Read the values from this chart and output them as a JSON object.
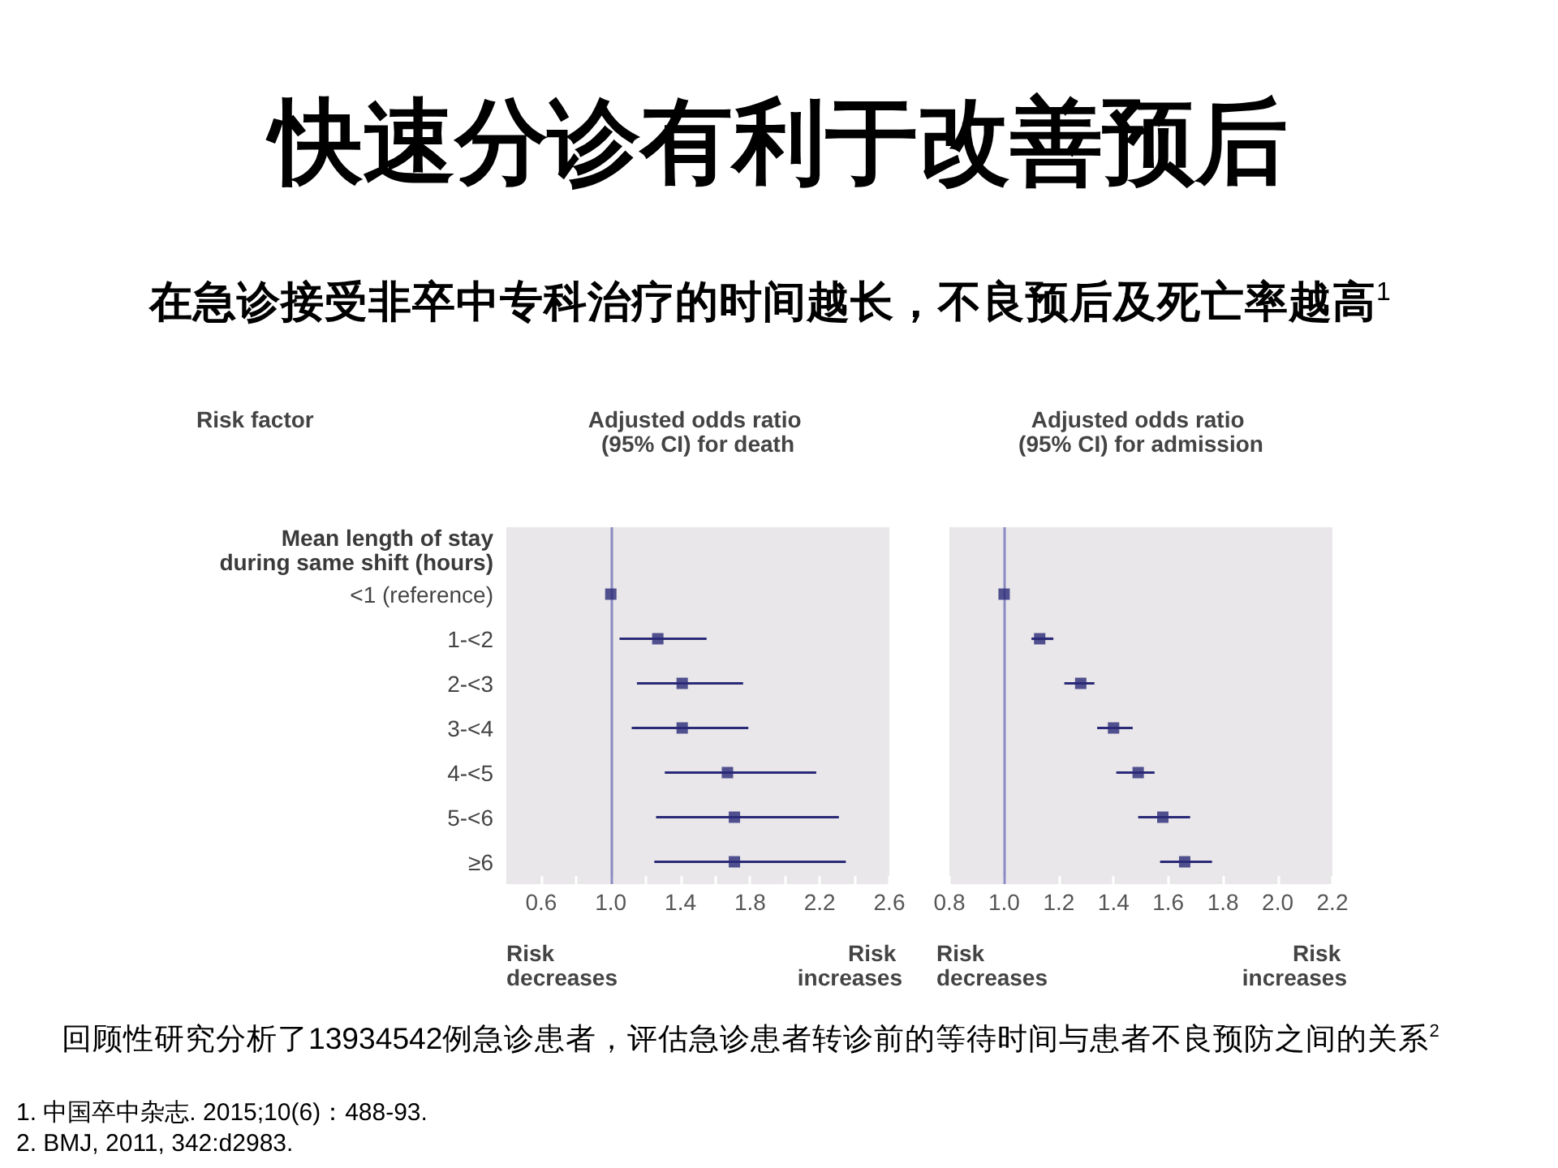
{
  "chart_data": [
    {
      "type": "scatter",
      "title": "快速分诊有利于改善预后",
      "subtitle": "在急诊接受非卒中专科治疗的时间越长，不良预后及死亡率越高$^{1}$",
      "xlabel": "Adjusted odds ratio (95% CI) for death",
      "ylabel": "Risk factor",
      "orientation": "horizontal",
      "marker": "square",
      "color": "#2b2a78",
      "categories": [
        "Mean length of stay during same shift (hours)",
        "<1 (reference)",
        "1-<2",
        "2-<3",
        "3-<4",
        "4-<5",
        "5-<6",
        "≥6"
      ],
      "values": [
        null,
        1,
        1.27,
        1.41,
        1.41,
        1.67,
        1.71,
        1.71
      ],
      "errors": [
        null,
        null,
        [
          1.05,
          1.55
        ],
        [
          1.15,
          1.76
        ],
        [
          1.12,
          1.79
        ],
        [
          1.31,
          2.18
        ],
        [
          1.26,
          2.31
        ],
        [
          1.25,
          2.35
        ]
      ],
      "xlim": [
        0.4,
        2.6
      ],
      "xticks": [
        0.6,
        {
          "value": 0.8,
          "label": null
        },
        {
          "value": 1,
          "label": "1.0"
        },
        {
          "value": 1.2,
          "label": null
        },
        1.4,
        {
          "value": 1.6,
          "label": null
        },
        1.8,
        {
          "value": 2,
          "label": null
        },
        2.2,
        {
          "value": 2.4,
          "label": null
        },
        2.6
      ],
      "ref_lines": [
        {
          "axis": "x",
          "value": 1,
          "color": "#8b8ac2"
        }
      ],
      "annotations": [
        "Risk decreases",
        "Risk increases",
        "回顾性研究分析了13934542例急诊患者，评估急诊患者转诊前的等待时间与患者不良预防之间的关系$^{2}$",
        "1. 中国卒中杂志. 2015;10(6)：488-93.",
        "2. BMJ, 2011, 342:d2983."
      ]
    },
    {
      "type": "scatter",
      "xlabel": "Adjusted odds ratio (95% CI) for admission",
      "orientation": "horizontal",
      "marker": "square",
      "color": "#2b2a78",
      "tick_labels": "x",
      "categories": [
        null,
        null,
        null,
        null,
        null,
        null,
        null,
        null
      ],
      "values": [
        null,
        1,
        1.13,
        1.28,
        1.4,
        1.49,
        1.58,
        1.66
      ],
      "errors": [
        null,
        null,
        [
          1.1,
          1.18
        ],
        [
          1.22,
          1.33
        ],
        [
          1.34,
          1.47
        ],
        [
          1.41,
          1.55
        ],
        [
          1.49,
          1.68
        ],
        [
          1.57,
          1.76
        ]
      ],
      "xlim": [
        0.8,
        2.2
      ],
      "xticks": [
        0.8,
        {
          "value": 1,
          "label": "1.0"
        },
        1.2,
        1.4,
        1.6,
        1.8,
        {
          "value": 2,
          "label": "2.0"
        },
        2.2
      ],
      "ref_lines": [
        {
          "axis": "x",
          "value": 1,
          "color": "#8b8ac2"
        }
      ],
      "annotations": [
        "Risk decreases",
        "Risk increases"
      ]
    }
  ]
}
